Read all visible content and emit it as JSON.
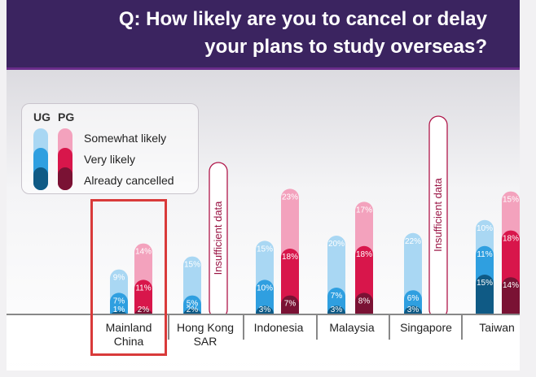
{
  "header": {
    "title_line1": "Q: How likely are you to cancel or delay",
    "title_line2": "your plans to study overseas?"
  },
  "legend": {
    "ug_label": "UG",
    "pg_label": "PG",
    "items": [
      "Somewhat likely",
      "Very likely",
      "Already cancelled"
    ]
  },
  "colors": {
    "ug": [
      "#a9d7f3",
      "#2f9fe0",
      "#0f5a85"
    ],
    "pg": [
      "#f3a2bd",
      "#d8164b",
      "#7a1234"
    ],
    "highlight": "#d93a3a",
    "banner": "#3b2460"
  },
  "insufficient_label": "Insufficient data",
  "chart_data": {
    "type": "bar",
    "stacked": true,
    "categories": [
      "Mainland\nChina",
      "Hong Kong\nSAR",
      "Indonesia",
      "Malaysia",
      "Singapore",
      "Taiwan"
    ],
    "series": [
      {
        "group": "UG",
        "name": "Already cancelled",
        "values": [
          1,
          2,
          3,
          3,
          3,
          15
        ]
      },
      {
        "group": "UG",
        "name": "Very likely",
        "values": [
          7,
          5,
          10,
          7,
          6,
          11
        ]
      },
      {
        "group": "UG",
        "name": "Somewhat likely",
        "values": [
          9,
          15,
          15,
          20,
          22,
          10
        ]
      },
      {
        "group": "PG",
        "name": "Already cancelled",
        "values": [
          2,
          null,
          7,
          8,
          null,
          14
        ]
      },
      {
        "group": "PG",
        "name": "Very likely",
        "values": [
          11,
          null,
          18,
          18,
          null,
          18
        ]
      },
      {
        "group": "PG",
        "name": "Somewhat likely",
        "values": [
          14,
          null,
          23,
          17,
          null,
          15
        ]
      }
    ],
    "value_labels": {
      "UG": [
        [
          "1%",
          "7%",
          "9%"
        ],
        [
          "2%",
          "5%",
          "15%"
        ],
        [
          "3%",
          "10%",
          "15%"
        ],
        [
          "3%",
          "7%",
          "20%"
        ],
        [
          "3%",
          "6%",
          "22%"
        ],
        [
          "15%",
          "11%",
          "10%"
        ]
      ],
      "PG": [
        [
          "2%",
          "11%",
          "14%"
        ],
        null,
        [
          "7%",
          "18%",
          "23%"
        ],
        [
          "8%",
          "18%",
          "17%"
        ],
        null,
        [
          "14%",
          "18%",
          "15%"
        ]
      ]
    },
    "insufficient_data_pg": [
      false,
      true,
      false,
      false,
      true,
      false
    ],
    "highlighted_category": "Mainland\nChina"
  }
}
